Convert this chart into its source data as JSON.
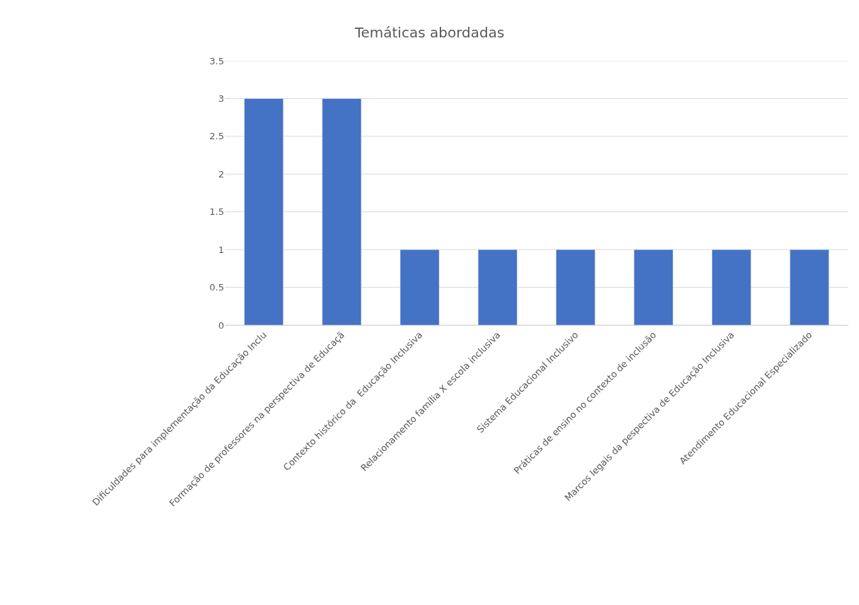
{
  "chart_data": {
    "type": "bar",
    "title": "Temáticas abordadas",
    "categories": [
      "Dificuldades para implementação da Educação Inclu",
      "Formação de professores na perspectiva de Educaçã",
      "Contexto histórico da  Educação Inclusiva",
      "Relacionamento família X escola inclusiva",
      "Sistema Educacional Inclusivo",
      "Práticas de ensino no contexto de inclusão",
      "Marcos legais da pespectiva de Educação Inclusiva",
      "Atendimento Educacional Especializado"
    ],
    "values": [
      3,
      3,
      1,
      1,
      1,
      1,
      1,
      1
    ],
    "color": "#4472c4",
    "ylim": [
      0,
      3.5
    ],
    "yticks": [
      0,
      0.5,
      1,
      1.5,
      2,
      2.5,
      3,
      3.5
    ],
    "grid": "y"
  }
}
